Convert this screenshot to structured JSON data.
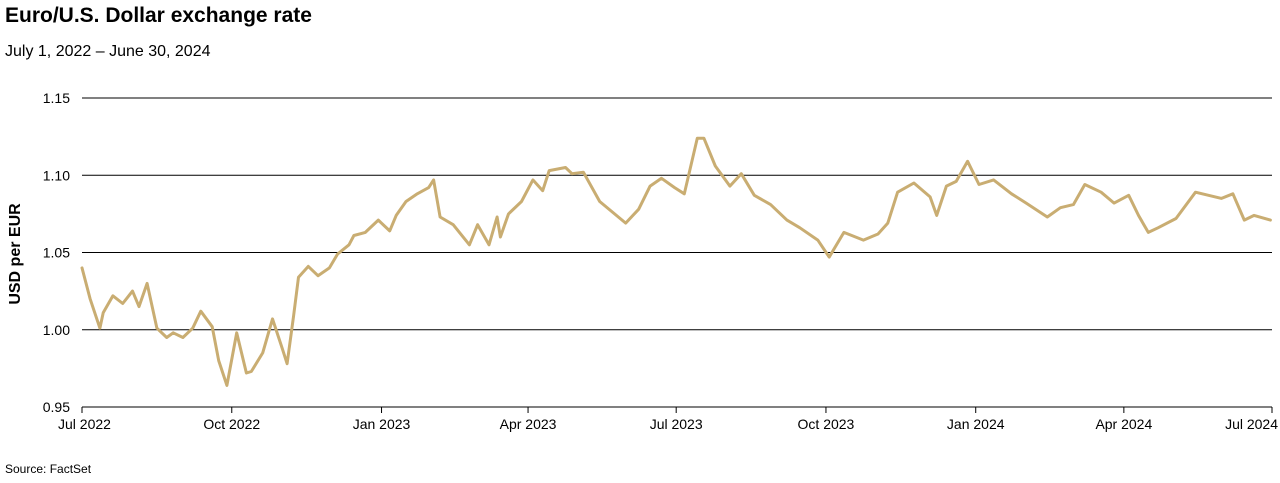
{
  "title": "Euro/U.S. Dollar exchange rate",
  "subtitle": "July 1, 2022 – June 30, 2024",
  "source": "Source: FactSet",
  "colors": {
    "series": "#c9ad72",
    "grid": "#000000"
  },
  "chart_data": {
    "type": "line",
    "title": "Euro/U.S. Dollar exchange rate",
    "subtitle": "July 1, 2022 – June 30, 2024",
    "xlabel": "",
    "ylabel": "USD per EUR",
    "ylim": [
      0.95,
      1.15
    ],
    "yticks": [
      "0.95",
      "1.00",
      "1.05",
      "1.10",
      "1.15"
    ],
    "xlim": [
      "2022-07-01",
      "2024-07-01"
    ],
    "xticks": [
      {
        "label": "Jul 2022",
        "date": "2022-07-01"
      },
      {
        "label": "Oct 2022",
        "date": "2022-10-01"
      },
      {
        "label": "Jan 2023",
        "date": "2023-01-01"
      },
      {
        "label": "Apr 2023",
        "date": "2023-04-01"
      },
      {
        "label": "Jul 2023",
        "date": "2023-07-01"
      },
      {
        "label": "Oct 2023",
        "date": "2023-10-01"
      },
      {
        "label": "Jan 2024",
        "date": "2024-01-01"
      },
      {
        "label": "Apr 2024",
        "date": "2024-04-01"
      },
      {
        "label": "Jul 2024",
        "date": "2024-07-01"
      }
    ],
    "grid": "horizontal",
    "legend": "none",
    "series": [
      {
        "x": [
          "2022-07-01",
          "2022-07-06",
          "2022-07-12",
          "2022-07-14",
          "2022-07-20",
          "2022-07-26",
          "2022-08-01",
          "2022-08-05",
          "2022-08-10",
          "2022-08-16",
          "2022-08-22",
          "2022-08-26",
          "2022-09-01",
          "2022-09-07",
          "2022-09-12",
          "2022-09-19",
          "2022-09-23",
          "2022-09-28",
          "2022-10-04",
          "2022-10-10",
          "2022-10-13",
          "2022-10-20",
          "2022-10-26",
          "2022-11-01",
          "2022-11-04",
          "2022-11-08",
          "2022-11-11",
          "2022-11-17",
          "2022-11-23",
          "2022-11-30",
          "2022-12-05",
          "2022-12-12",
          "2022-12-15",
          "2022-12-22",
          "2022-12-30",
          "2023-01-06",
          "2023-01-10",
          "2023-01-16",
          "2023-01-23",
          "2023-01-30",
          "2023-02-02",
          "2023-02-06",
          "2023-02-14",
          "2023-02-24",
          "2023-03-01",
          "2023-03-08",
          "2023-03-13",
          "2023-03-15",
          "2023-03-20",
          "2023-03-28",
          "2023-04-04",
          "2023-04-10",
          "2023-04-14",
          "2023-04-24",
          "2023-04-28",
          "2023-05-05",
          "2023-05-15",
          "2023-05-31",
          "2023-06-08",
          "2023-06-15",
          "2023-06-22",
          "2023-06-30",
          "2023-07-06",
          "2023-07-14",
          "2023-07-18",
          "2023-07-25",
          "2023-08-03",
          "2023-08-10",
          "2023-08-18",
          "2023-08-28",
          "2023-09-07",
          "2023-09-15",
          "2023-09-26",
          "2023-10-03",
          "2023-10-12",
          "2023-10-24",
          "2023-11-02",
          "2023-11-08",
          "2023-11-14",
          "2023-11-24",
          "2023-12-04",
          "2023-12-08",
          "2023-12-14",
          "2023-12-20",
          "2023-12-27",
          "2024-01-03",
          "2024-01-12",
          "2024-01-23",
          "2024-02-01",
          "2024-02-14",
          "2024-02-22",
          "2024-03-01",
          "2024-03-08",
          "2024-03-18",
          "2024-03-26",
          "2024-04-04",
          "2024-04-10",
          "2024-04-16",
          "2024-04-22",
          "2024-05-03",
          "2024-05-15",
          "2024-05-31",
          "2024-06-07",
          "2024-06-14",
          "2024-06-20",
          "2024-06-30"
        ],
        "values": [
          1.04,
          1.02,
          1.001,
          1.011,
          1.022,
          1.017,
          1.025,
          1.015,
          1.03,
          1.001,
          0.995,
          0.998,
          0.995,
          1.001,
          1.012,
          1.002,
          0.98,
          0.964,
          0.998,
          0.972,
          0.973,
          0.985,
          1.007,
          0.988,
          0.978,
          1.009,
          1.034,
          1.041,
          1.035,
          1.04,
          1.049,
          1.055,
          1.061,
          1.063,
          1.071,
          1.064,
          1.074,
          1.083,
          1.088,
          1.092,
          1.097,
          1.073,
          1.068,
          1.055,
          1.068,
          1.055,
          1.073,
          1.06,
          1.075,
          1.083,
          1.097,
          1.09,
          1.103,
          1.105,
          1.101,
          1.102,
          1.083,
          1.069,
          1.078,
          1.093,
          1.098,
          1.092,
          1.088,
          1.124,
          1.124,
          1.106,
          1.093,
          1.101,
          1.087,
          1.081,
          1.071,
          1.066,
          1.058,
          1.047,
          1.063,
          1.058,
          1.062,
          1.069,
          1.089,
          1.095,
          1.086,
          1.074,
          1.093,
          1.096,
          1.109,
          1.094,
          1.097,
          1.088,
          1.082,
          1.073,
          1.079,
          1.081,
          1.094,
          1.089,
          1.082,
          1.087,
          1.074,
          1.063,
          1.066,
          1.072,
          1.089,
          1.085,
          1.088,
          1.071,
          1.074,
          1.071
        ]
      }
    ]
  }
}
